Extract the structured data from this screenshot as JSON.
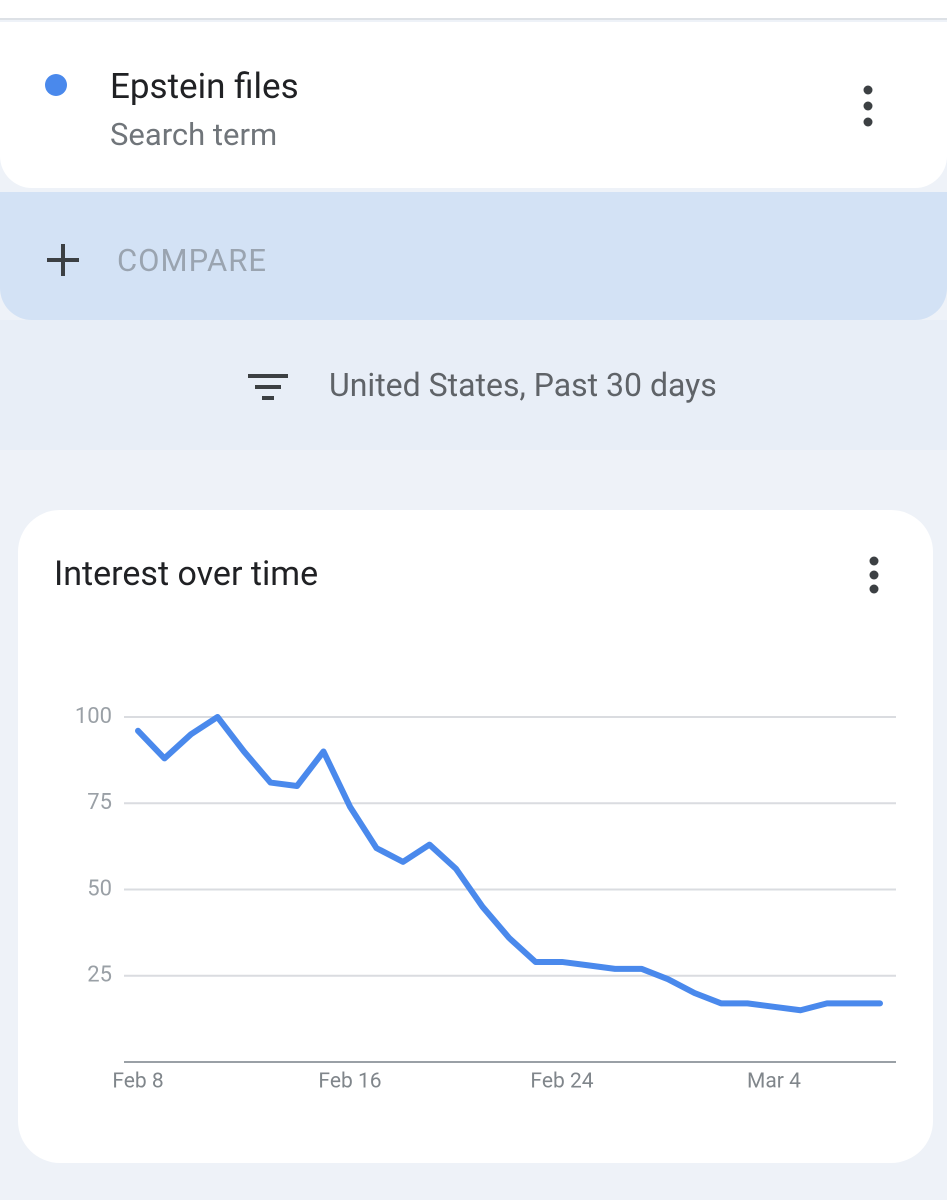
{
  "search_term": {
    "name": "Epstein files",
    "subtitle": "Search term"
  },
  "compare": "COMPARE",
  "filter": "United States, Past 30 days",
  "chart_data": {
    "type": "line",
    "title": "Interest over time",
    "x": [
      "Feb 8",
      "Feb 9",
      "Feb 10",
      "Feb 11",
      "Feb 12",
      "Feb 13",
      "Feb 14",
      "Feb 15",
      "Feb 16",
      "Feb 17",
      "Feb 18",
      "Feb 19",
      "Feb 20",
      "Feb 21",
      "Feb 22",
      "Feb 23",
      "Feb 24",
      "Feb 25",
      "Feb 26",
      "Feb 27",
      "Feb 28",
      "Mar 1",
      "Mar 2",
      "Mar 3",
      "Mar 4",
      "Mar 5",
      "Mar 6",
      "Mar 7",
      "Mar 8"
    ],
    "values": [
      96,
      88,
      95,
      100,
      90,
      81,
      80,
      90,
      74,
      62,
      58,
      63,
      56,
      45,
      36,
      29,
      29,
      28,
      27,
      27,
      24,
      20,
      17,
      17,
      16,
      15,
      17,
      17,
      17
    ],
    "color": "#4a89ec",
    "ylim": [
      0,
      100
    ],
    "yticks": [
      25,
      50,
      75,
      100
    ],
    "grid": true
  }
}
